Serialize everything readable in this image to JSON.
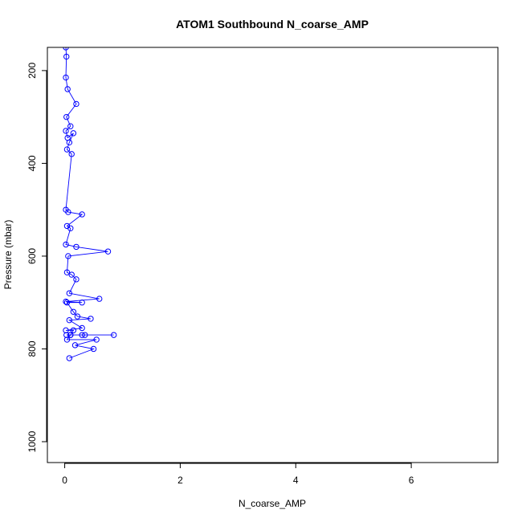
{
  "chart_data": {
    "type": "line",
    "title": "ATOM1 Southbound N_coarse_AMP",
    "xlabel": "N_coarse_AMP",
    "ylabel": "Pressure (mbar)",
    "x_ticks": [
      0,
      2,
      4,
      6
    ],
    "y_ticks": [
      200,
      400,
      600,
      800,
      1000
    ],
    "xlim": [
      -0.3,
      7.5
    ],
    "ylim": [
      1045,
      150
    ],
    "y_reversed": true,
    "grid": false,
    "legend": "none",
    "marker": "open-circle",
    "color": "#0000ff",
    "series": [
      {
        "points": [
          [
            0.02,
            150
          ],
          [
            0.03,
            170
          ],
          [
            0.02,
            215
          ],
          [
            0.05,
            240
          ],
          [
            0.2,
            272
          ],
          [
            0.03,
            300
          ],
          [
            0.1,
            320
          ],
          [
            0.02,
            330
          ],
          [
            0.05,
            345
          ],
          [
            0.15,
            335
          ],
          [
            0.08,
            355
          ],
          [
            0.04,
            370
          ],
          [
            0.12,
            380
          ],
          [
            0.02,
            500
          ],
          [
            0.06,
            505
          ],
          [
            0.3,
            510
          ],
          [
            0.04,
            535
          ],
          [
            0.1,
            540
          ],
          [
            0.02,
            575
          ],
          [
            0.2,
            580
          ],
          [
            0.75,
            590
          ],
          [
            0.06,
            600
          ],
          [
            0.04,
            635
          ],
          [
            0.12,
            640
          ],
          [
            0.2,
            650
          ],
          [
            0.08,
            680
          ],
          [
            0.6,
            692
          ],
          [
            0.02,
            698
          ],
          [
            0.3,
            700
          ],
          [
            0.04,
            700
          ],
          [
            0.15,
            720
          ],
          [
            0.22,
            730
          ],
          [
            0.45,
            735
          ],
          [
            0.08,
            738
          ],
          [
            0.3,
            755
          ],
          [
            0.02,
            760
          ],
          [
            0.15,
            760
          ],
          [
            0.1,
            770
          ],
          [
            0.85,
            770
          ],
          [
            0.03,
            770
          ],
          [
            0.35,
            770
          ],
          [
            0.3,
            770
          ],
          [
            0.1,
            770
          ],
          [
            0.04,
            780
          ],
          [
            0.55,
            780
          ],
          [
            0.18,
            792
          ],
          [
            0.5,
            800
          ],
          [
            0.08,
            820
          ]
        ]
      }
    ]
  }
}
